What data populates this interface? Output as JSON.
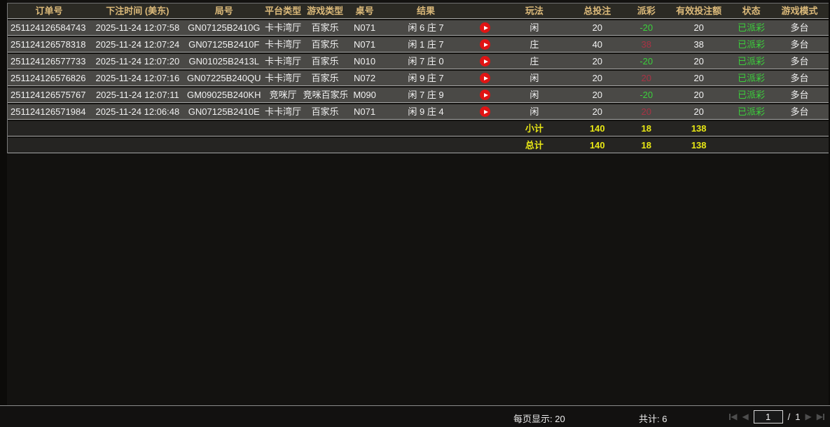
{
  "colors": {
    "header_text": "#dcba7a",
    "row_bg": "#4a4946",
    "totals_bg": "#252422",
    "positive_green": "#3bd03b",
    "negative_red": "#a93244",
    "totals_yellow": "#e8e715",
    "replay_red": "#e01414"
  },
  "table": {
    "headers": [
      "订单号",
      "下注时间 (美东)",
      "局号",
      "平台类型",
      "游戏类型",
      "桌号",
      "结果",
      "",
      "玩法",
      "总投注",
      "派彩",
      "有效投注额",
      "状态",
      "游戏模式"
    ],
    "rows": [
      {
        "order": "251124126584743",
        "time": "2025-11-24 12:07:58",
        "round": "GN07125B2410G",
        "platform": "卡卡湾厅",
        "game": "百家乐",
        "table_no": "N071",
        "result": "闲 6 庄 7",
        "play": "闲",
        "total_bet": "20",
        "payout": "-20",
        "payout_class": "green",
        "valid_bet": "20",
        "status": "已派彩",
        "mode": "多台"
      },
      {
        "order": "251124126578318",
        "time": "2025-11-24 12:07:24",
        "round": "GN07125B2410F",
        "platform": "卡卡湾厅",
        "game": "百家乐",
        "table_no": "N071",
        "result": "闲 1 庄 7",
        "play": "庄",
        "total_bet": "40",
        "payout": "38",
        "payout_class": "red",
        "valid_bet": "38",
        "status": "已派彩",
        "mode": "多台"
      },
      {
        "order": "251124126577733",
        "time": "2025-11-24 12:07:20",
        "round": "GN01025B2413L",
        "platform": "卡卡湾厅",
        "game": "百家乐",
        "table_no": "N010",
        "result": "闲 7 庄 0",
        "play": "庄",
        "total_bet": "20",
        "payout": "-20",
        "payout_class": "green",
        "valid_bet": "20",
        "status": "已派彩",
        "mode": "多台"
      },
      {
        "order": "251124126576826",
        "time": "2025-11-24 12:07:16",
        "round": "GN07225B240QU",
        "platform": "卡卡湾厅",
        "game": "百家乐",
        "table_no": "N072",
        "result": "闲 9 庄 7",
        "play": "闲",
        "total_bet": "20",
        "payout": "20",
        "payout_class": "red",
        "valid_bet": "20",
        "status": "已派彩",
        "mode": "多台"
      },
      {
        "order": "251124126575767",
        "time": "2025-11-24 12:07:11",
        "round": "GM09025B240KH",
        "platform": "竞咪厅",
        "game": "竞咪百家乐",
        "table_no": "M090",
        "result": "闲 7 庄 9",
        "play": "闲",
        "total_bet": "20",
        "payout": "-20",
        "payout_class": "green",
        "valid_bet": "20",
        "status": "已派彩",
        "mode": "多台"
      },
      {
        "order": "251124126571984",
        "time": "2025-11-24 12:06:48",
        "round": "GN07125B2410E",
        "platform": "卡卡湾厅",
        "game": "百家乐",
        "table_no": "N071",
        "result": "闲 9 庄 4",
        "play": "闲",
        "total_bet": "20",
        "payout": "20",
        "payout_class": "red",
        "valid_bet": "20",
        "status": "已派彩",
        "mode": "多台"
      }
    ],
    "subtotal": {
      "label": "小计",
      "total_bet": "140",
      "payout": "18",
      "valid_bet": "138"
    },
    "total": {
      "label": "总计",
      "total_bet": "140",
      "payout": "18",
      "valid_bet": "138"
    }
  },
  "footer": {
    "per_page": "每页显示: 20",
    "total_count": "共计: 6",
    "page_input": "1",
    "page_separator": "/",
    "page_total": "1"
  }
}
